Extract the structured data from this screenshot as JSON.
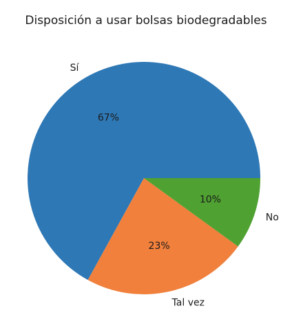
{
  "chart_data": {
    "type": "pie",
    "title": "Disposición a usar bolsas biodegradables",
    "labels": [
      "Sí",
      "Tal vez",
      "No"
    ],
    "values": [
      67,
      23,
      10
    ],
    "pct_labels": [
      "67%",
      "23%",
      "10%"
    ],
    "colors": [
      "#2e78b5",
      "#f0803c",
      "#4fa132"
    ],
    "start_angle_deg": 0,
    "direction": "counterclockwise"
  }
}
